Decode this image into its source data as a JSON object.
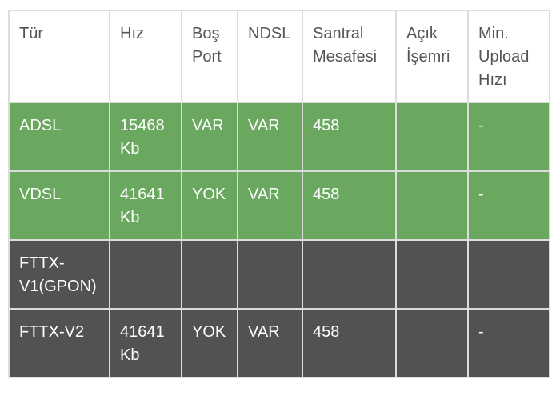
{
  "table": {
    "header": [
      "Tür",
      "Hız",
      "Boş Port",
      "NDSL",
      "Santral Mesafesi",
      "Açık İşemri",
      "Min. Upload Hızı"
    ],
    "rows": [
      [
        "ADSL",
        "15468 Kb",
        "VAR",
        "VAR",
        "458",
        null,
        "-"
      ],
      [
        "VDSL",
        "41641 Kb",
        "YOK",
        "VAR",
        "458",
        null,
        "-"
      ],
      [
        "FTTX-V1(GPON)",
        null,
        null,
        null,
        null,
        null,
        null
      ],
      [
        "FTTX-V2",
        "41641 Kb",
        "YOK",
        "VAR",
        "458",
        null,
        "-"
      ]
    ]
  }
}
